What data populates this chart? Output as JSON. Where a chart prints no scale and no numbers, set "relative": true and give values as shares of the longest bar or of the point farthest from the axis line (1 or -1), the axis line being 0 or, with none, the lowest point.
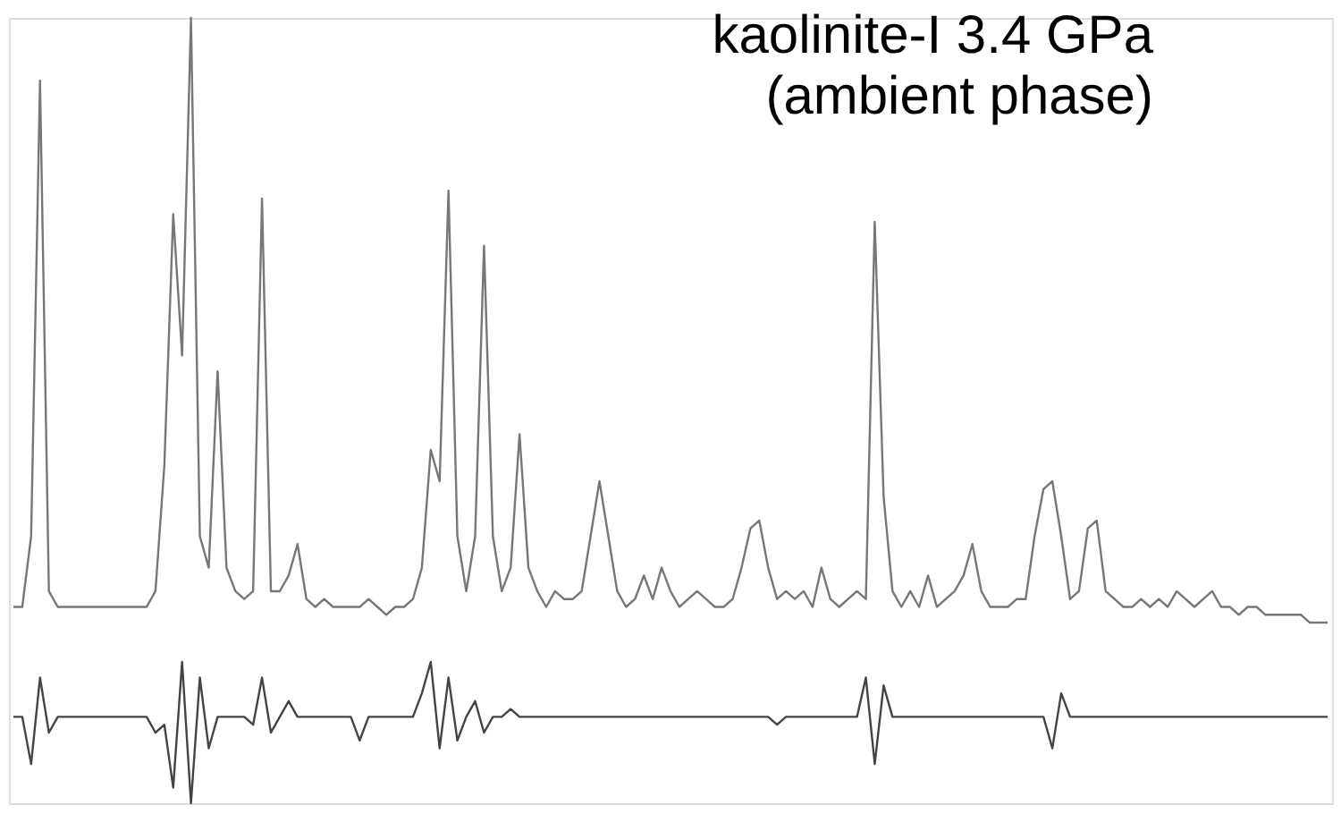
{
  "chart_data": {
    "type": "line",
    "title": "kaolinite-I    3.4 GPa",
    "subtitle": "(ambient phase)",
    "relative": true,
    "categories": [
      null,
      null,
      null,
      null,
      null,
      null,
      null,
      null,
      null,
      null,
      null,
      null,
      null,
      null,
      null,
      null,
      null,
      null,
      null,
      null,
      null,
      null,
      null,
      null,
      null,
      null,
      null,
      null,
      null,
      null,
      null,
      null,
      null,
      null,
      null,
      null,
      null,
      null,
      null,
      null,
      null,
      null,
      null,
      null,
      null,
      null,
      null,
      null,
      null,
      null,
      null,
      null,
      null,
      null,
      null,
      null,
      null,
      null,
      null,
      null,
      null,
      null,
      null,
      null,
      null,
      null,
      null,
      null,
      null,
      null,
      null,
      null,
      null,
      null,
      null,
      null,
      null,
      null,
      null,
      null,
      null,
      null,
      null,
      null,
      null,
      null,
      null,
      null,
      null,
      null,
      null,
      null,
      null,
      null,
      null,
      null,
      null,
      null,
      null,
      null,
      null,
      null,
      null,
      null,
      null,
      null,
      null,
      null,
      null,
      null,
      null,
      null,
      null,
      null,
      null,
      null,
      null,
      null,
      null,
      null,
      null,
      null,
      null,
      null,
      null,
      null,
      null,
      null,
      null,
      null,
      null,
      null,
      null,
      null,
      null,
      null,
      null,
      null,
      null,
      null,
      null,
      null,
      null,
      null,
      null,
      null,
      null,
      null,
      null
    ],
    "series": [
      {
        "color": "#777777",
        "values": [
          0.25,
          0.25,
          0.34,
          0.92,
          0.27,
          0.25,
          0.25,
          0.25,
          0.25,
          0.25,
          0.25,
          0.25,
          0.25,
          0.25,
          0.25,
          0.25,
          0.27,
          0.43,
          0.75,
          0.57,
          1.0,
          0.34,
          0.3,
          0.55,
          0.3,
          0.27,
          0.26,
          0.27,
          0.77,
          0.27,
          0.27,
          0.29,
          0.33,
          0.26,
          0.25,
          0.26,
          0.25,
          0.25,
          0.25,
          0.25,
          0.26,
          0.25,
          0.24,
          0.25,
          0.25,
          0.26,
          0.3,
          0.45,
          0.41,
          0.78,
          0.34,
          0.27,
          0.34,
          0.71,
          0.34,
          0.27,
          0.3,
          0.47,
          0.3,
          0.27,
          0.25,
          0.27,
          0.26,
          0.26,
          0.27,
          0.34,
          0.41,
          0.34,
          0.27,
          0.25,
          0.26,
          0.29,
          0.26,
          0.3,
          0.27,
          0.25,
          0.26,
          0.27,
          0.26,
          0.25,
          0.25,
          0.26,
          0.3,
          0.35,
          0.36,
          0.3,
          0.26,
          0.27,
          0.26,
          0.27,
          0.25,
          0.3,
          0.26,
          0.25,
          0.26,
          0.27,
          0.26,
          0.74,
          0.39,
          0.27,
          0.25,
          0.27,
          0.25,
          0.29,
          0.25,
          0.26,
          0.27,
          0.29,
          0.33,
          0.27,
          0.25,
          0.25,
          0.25,
          0.26,
          0.26,
          0.34,
          0.4,
          0.41,
          0.34,
          0.26,
          0.27,
          0.35,
          0.36,
          0.27,
          0.26,
          0.25,
          0.25,
          0.26,
          0.25,
          0.26,
          0.25,
          0.27,
          0.26,
          0.25,
          0.26,
          0.27,
          0.25,
          0.25,
          0.24,
          0.25,
          0.25,
          0.24,
          0.24,
          0.24,
          0.24,
          0.24,
          0.23,
          0.23,
          0.23
        ]
      },
      {
        "color": "#444444",
        "values": [
          0.11,
          0.11,
          0.05,
          0.16,
          0.09,
          0.11,
          0.11,
          0.11,
          0.11,
          0.11,
          0.11,
          0.11,
          0.11,
          0.11,
          0.11,
          0.11,
          0.09,
          0.1,
          0.02,
          0.18,
          0.0,
          0.16,
          0.07,
          0.11,
          0.11,
          0.11,
          0.11,
          0.1,
          0.16,
          0.09,
          0.11,
          0.13,
          0.11,
          0.11,
          0.11,
          0.11,
          0.11,
          0.11,
          0.11,
          0.08,
          0.11,
          0.11,
          0.11,
          0.11,
          0.11,
          0.11,
          0.14,
          0.18,
          0.07,
          0.16,
          0.08,
          0.11,
          0.13,
          0.09,
          0.11,
          0.11,
          0.12,
          0.11,
          0.11,
          0.11,
          0.11,
          0.11,
          0.11,
          0.11,
          0.11,
          0.11,
          0.11,
          0.11,
          0.11,
          0.11,
          0.11,
          0.11,
          0.11,
          0.11,
          0.11,
          0.11,
          0.11,
          0.11,
          0.11,
          0.11,
          0.11,
          0.11,
          0.11,
          0.11,
          0.11,
          0.11,
          0.1,
          0.11,
          0.11,
          0.11,
          0.11,
          0.11,
          0.11,
          0.11,
          0.11,
          0.11,
          0.16,
          0.05,
          0.15,
          0.11,
          0.11,
          0.11,
          0.11,
          0.11,
          0.11,
          0.11,
          0.11,
          0.11,
          0.11,
          0.11,
          0.11,
          0.11,
          0.11,
          0.11,
          0.11,
          0.11,
          0.11,
          0.07,
          0.14,
          0.11,
          0.11,
          0.11,
          0.11,
          0.11,
          0.11,
          0.11,
          0.11,
          0.11,
          0.11,
          0.11,
          0.11,
          0.11,
          0.11,
          0.11,
          0.11,
          0.11,
          0.11,
          0.11,
          0.11,
          0.11,
          0.11,
          0.11,
          0.11,
          0.11,
          0.11,
          0.11,
          0.11,
          0.11,
          0.11
        ]
      }
    ]
  }
}
